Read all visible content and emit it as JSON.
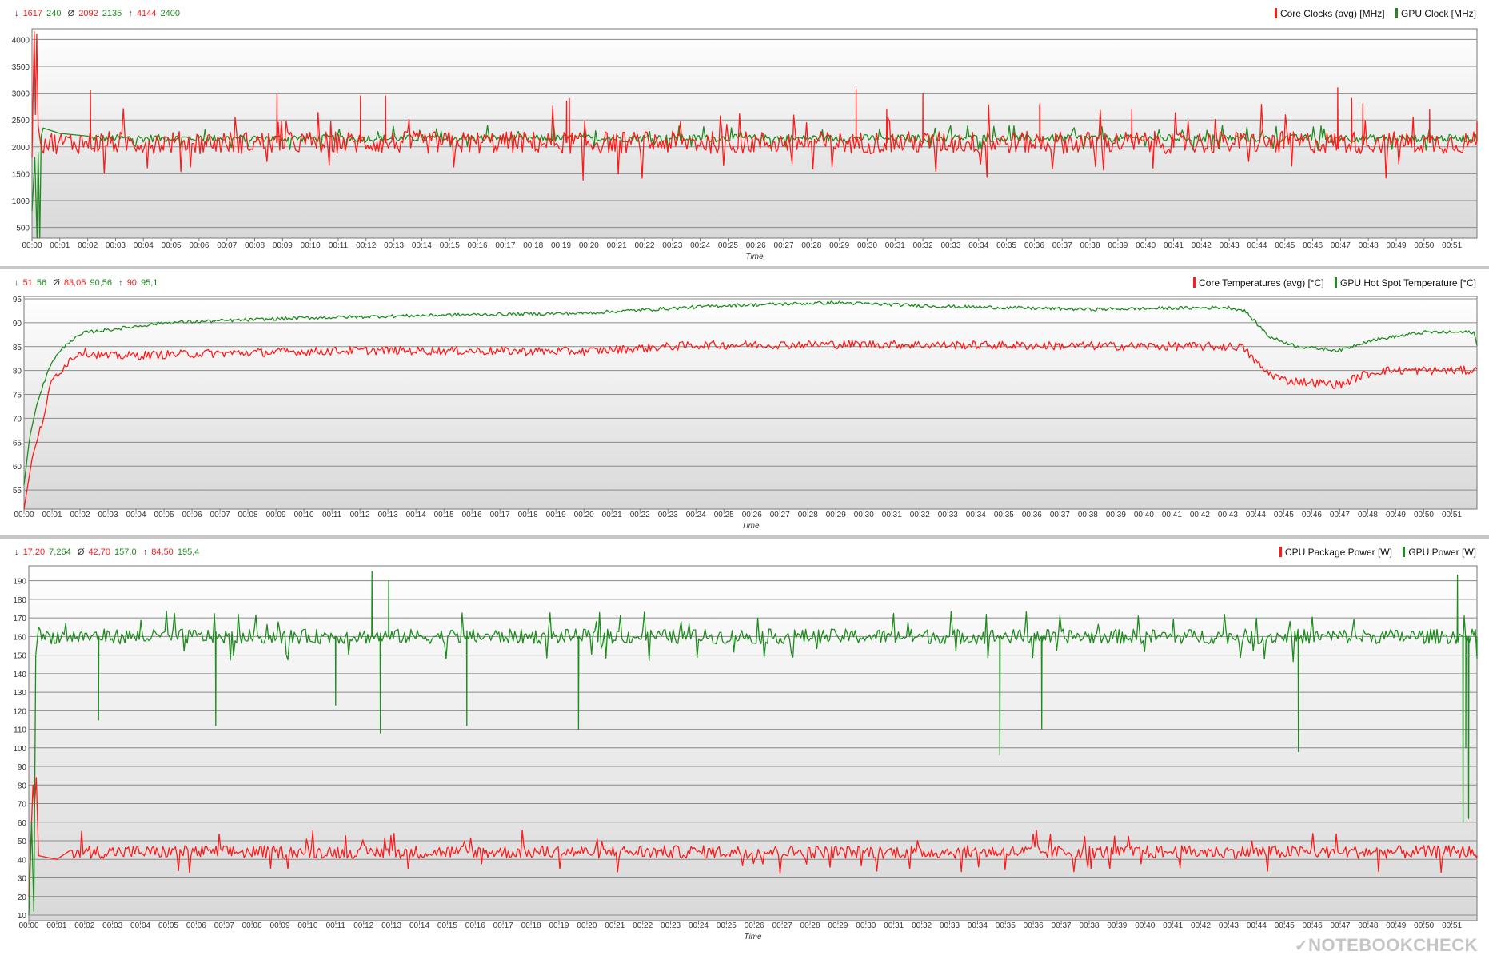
{
  "colors": {
    "red": "#ff1a1a",
    "green": "#1e8c1e",
    "grid": "#8a8a8a",
    "text": "#333333"
  },
  "x_label": "Time",
  "time_ticks": [
    "00:00",
    "00:01",
    "00:02",
    "00:03",
    "00:04",
    "00:05",
    "00:06",
    "00:07",
    "00:08",
    "00:09",
    "00:10",
    "00:11",
    "00:12",
    "00:13",
    "00:14",
    "00:15",
    "00:16",
    "00:17",
    "00:18",
    "00:19",
    "00:20",
    "00:21",
    "00:22",
    "00:23",
    "00:24",
    "00:25",
    "00:26",
    "00:27",
    "00:28",
    "00:29",
    "00:30",
    "00:31",
    "00:32",
    "00:33",
    "00:34",
    "00:35",
    "00:36",
    "00:37",
    "00:38",
    "00:39",
    "00:40",
    "00:41",
    "00:42",
    "00:43",
    "00:44",
    "00:45",
    "00:46",
    "00:47",
    "00:48",
    "00:49",
    "00:50",
    "00:51"
  ],
  "watermark": "NOTEBOOKCHECK",
  "chart_data": [
    {
      "type": "line",
      "legend": [
        "Core Clocks (avg) [MHz]",
        "GPU Clock [MHz]"
      ],
      "stats": {
        "min": [
          "1617",
          "240"
        ],
        "avg": [
          "2092",
          "2135"
        ],
        "max": [
          "4144",
          "2400"
        ]
      },
      "xlabel": "Time",
      "x_range_minutes": [
        0,
        51.9
      ],
      "ylim": [
        300,
        4200
      ],
      "yticks": [
        500,
        1000,
        1500,
        2000,
        2500,
        3000,
        3500,
        4000
      ],
      "grid": true,
      "series": [
        {
          "name": "Core Clocks (avg) [MHz]",
          "color": "#ff1a1a",
          "pattern": {
            "start": [
              [
                0,
                1800
              ],
              [
                0.05,
                3300
              ],
              [
                0.08,
                4144
              ],
              [
                0.12,
                2600
              ],
              [
                0.17,
                4100
              ],
              [
                0.22,
                2400
              ],
              [
                0.3,
                2100
              ]
            ],
            "base": 2080,
            "noise": 210,
            "spikes": [
              [
                2.1,
                3050
              ],
              [
                8.8,
                3000
              ],
              [
                11.8,
                2950
              ],
              [
                12.7,
                2950
              ],
              [
                19.2,
                2850
              ],
              [
                19.3,
                2900
              ],
              [
                29.6,
                3080
              ],
              [
                30.7,
                2700
              ],
              [
                32,
                3000
              ],
              [
                36.2,
                2800
              ],
              [
                39.5,
                2700
              ],
              [
                46.9,
                3100
              ],
              [
                47.4,
                2900
              ],
              [
                47.8,
                2800
              ],
              [
                50.2,
                2700
              ]
            ],
            "end": 2480
          }
        },
        {
          "name": "GPU Clock [MHz]",
          "color": "#1e8c1e",
          "pattern": {
            "start": [
              [
                0,
                800
              ],
              [
                0.1,
                1800
              ],
              [
                0.18,
                250
              ],
              [
                0.22,
                1900
              ],
              [
                0.28,
                300
              ],
              [
                0.33,
                2200
              ],
              [
                0.4,
                2350
              ],
              [
                1.0,
                2250
              ],
              [
                2.0,
                2200
              ]
            ],
            "base": 2160,
            "noise": 70,
            "spikes": [],
            "end": 2460
          }
        }
      ]
    },
    {
      "type": "line",
      "legend": [
        "Core Temperatures (avg) [°C]",
        "GPU Hot Spot Temperature [°C]"
      ],
      "stats": {
        "min": [
          "51",
          "56"
        ],
        "avg": [
          "83,05",
          "90,56"
        ],
        "max": [
          "90",
          "95,1"
        ]
      },
      "xlabel": "Time",
      "x_range_minutes": [
        0,
        51.9
      ],
      "ylim": [
        51,
        95.5
      ],
      "yticks": [
        55,
        60,
        65,
        70,
        75,
        80,
        85,
        90,
        95
      ],
      "grid": true,
      "series": [
        {
          "name": "Core Temperatures (avg) [°C]",
          "color": "#ff1a1a",
          "profile": [
            [
              0,
              51
            ],
            [
              0.3,
              62
            ],
            [
              0.6,
              68
            ],
            [
              1.0,
              78
            ],
            [
              1.6,
              82
            ],
            [
              2.0,
              84
            ],
            [
              3.0,
              83
            ],
            [
              6.0,
              83.5
            ],
            [
              12,
              84.2
            ],
            [
              20,
              84
            ],
            [
              24,
              85.3
            ],
            [
              30,
              85.5
            ],
            [
              36,
              85.2
            ],
            [
              43.5,
              85
            ],
            [
              44.3,
              80
            ],
            [
              45,
              78
            ],
            [
              47,
              77
            ],
            [
              47.8,
              79
            ],
            [
              48.5,
              80
            ],
            [
              51.9,
              80
            ]
          ],
          "noise": 0.9
        },
        {
          "name": "GPU Hot Spot Temperature [°C]",
          "color": "#1e8c1e",
          "profile": [
            [
              0,
              56
            ],
            [
              0.2,
              66
            ],
            [
              0.5,
              74
            ],
            [
              1.0,
              82
            ],
            [
              1.6,
              86
            ],
            [
              2.2,
              88
            ],
            [
              3.0,
              88.5
            ],
            [
              5.0,
              90
            ],
            [
              10,
              91
            ],
            [
              15,
              91.6
            ],
            [
              20,
              92
            ],
            [
              25,
              93.6
            ],
            [
              29,
              94.2
            ],
            [
              33,
              93.4
            ],
            [
              38,
              92.8
            ],
            [
              43,
              93.2
            ],
            [
              43.6,
              92.5
            ],
            [
              44.5,
              87
            ],
            [
              45.5,
              85
            ],
            [
              47,
              84.2
            ],
            [
              48,
              86.2
            ],
            [
              50,
              88
            ],
            [
              51.8,
              88
            ],
            [
              51.9,
              85
            ]
          ],
          "noise": 0.35
        }
      ]
    },
    {
      "type": "line",
      "legend": [
        "CPU Package Power [W]",
        "GPU Power [W]"
      ],
      "stats": {
        "min": [
          "17,20",
          "7,264"
        ],
        "avg": [
          "42,70",
          "157,0"
        ],
        "max": [
          "84,50",
          "195,4"
        ]
      },
      "xlabel": "Time",
      "x_range_minutes": [
        0,
        51.9
      ],
      "ylim": [
        7,
        198
      ],
      "yticks": [
        10,
        20,
        30,
        40,
        50,
        60,
        70,
        80,
        90,
        100,
        110,
        120,
        130,
        140,
        150,
        160,
        170,
        180,
        190
      ],
      "grid": true,
      "series": [
        {
          "name": "CPU Package Power [W]",
          "color": "#ff1a1a",
          "pattern": {
            "start": [
              [
                0,
                20
              ],
              [
                0.1,
                60
              ],
              [
                0.15,
                80
              ],
              [
                0.2,
                68
              ],
              [
                0.27,
                84
              ],
              [
                0.35,
                42
              ],
              [
                1.0,
                40
              ],
              [
                1.5,
                45
              ]
            ],
            "base": 44,
            "noise": 3.5,
            "spikes": [],
            "end": 42
          }
        },
        {
          "name": "GPU Power [W]",
          "color": "#1e8c1e",
          "pattern": {
            "start": [
              [
                0,
                10
              ],
              [
                0.1,
                60
              ],
              [
                0.18,
                12
              ],
              [
                0.25,
                150
              ],
              [
                0.35,
                165
              ]
            ],
            "base": 160,
            "noise": 4,
            "dips": [
              [
                2.5,
                115
              ],
              [
                6.7,
                112
              ],
              [
                11,
                123
              ],
              [
                12.6,
                108
              ],
              [
                15.7,
                112
              ],
              [
                19.7,
                110
              ],
              [
                34.8,
                96
              ],
              [
                36.3,
                110
              ],
              [
                45.5,
                98
              ],
              [
                51.4,
                60
              ],
              [
                51.5,
                100
              ],
              [
                51.6,
                62
              ]
            ],
            "peaks": [
              [
                12.3,
                195
              ],
              [
                12.9,
                190
              ],
              [
                51.2,
                193
              ]
            ],
            "end": 160
          }
        }
      ]
    }
  ]
}
